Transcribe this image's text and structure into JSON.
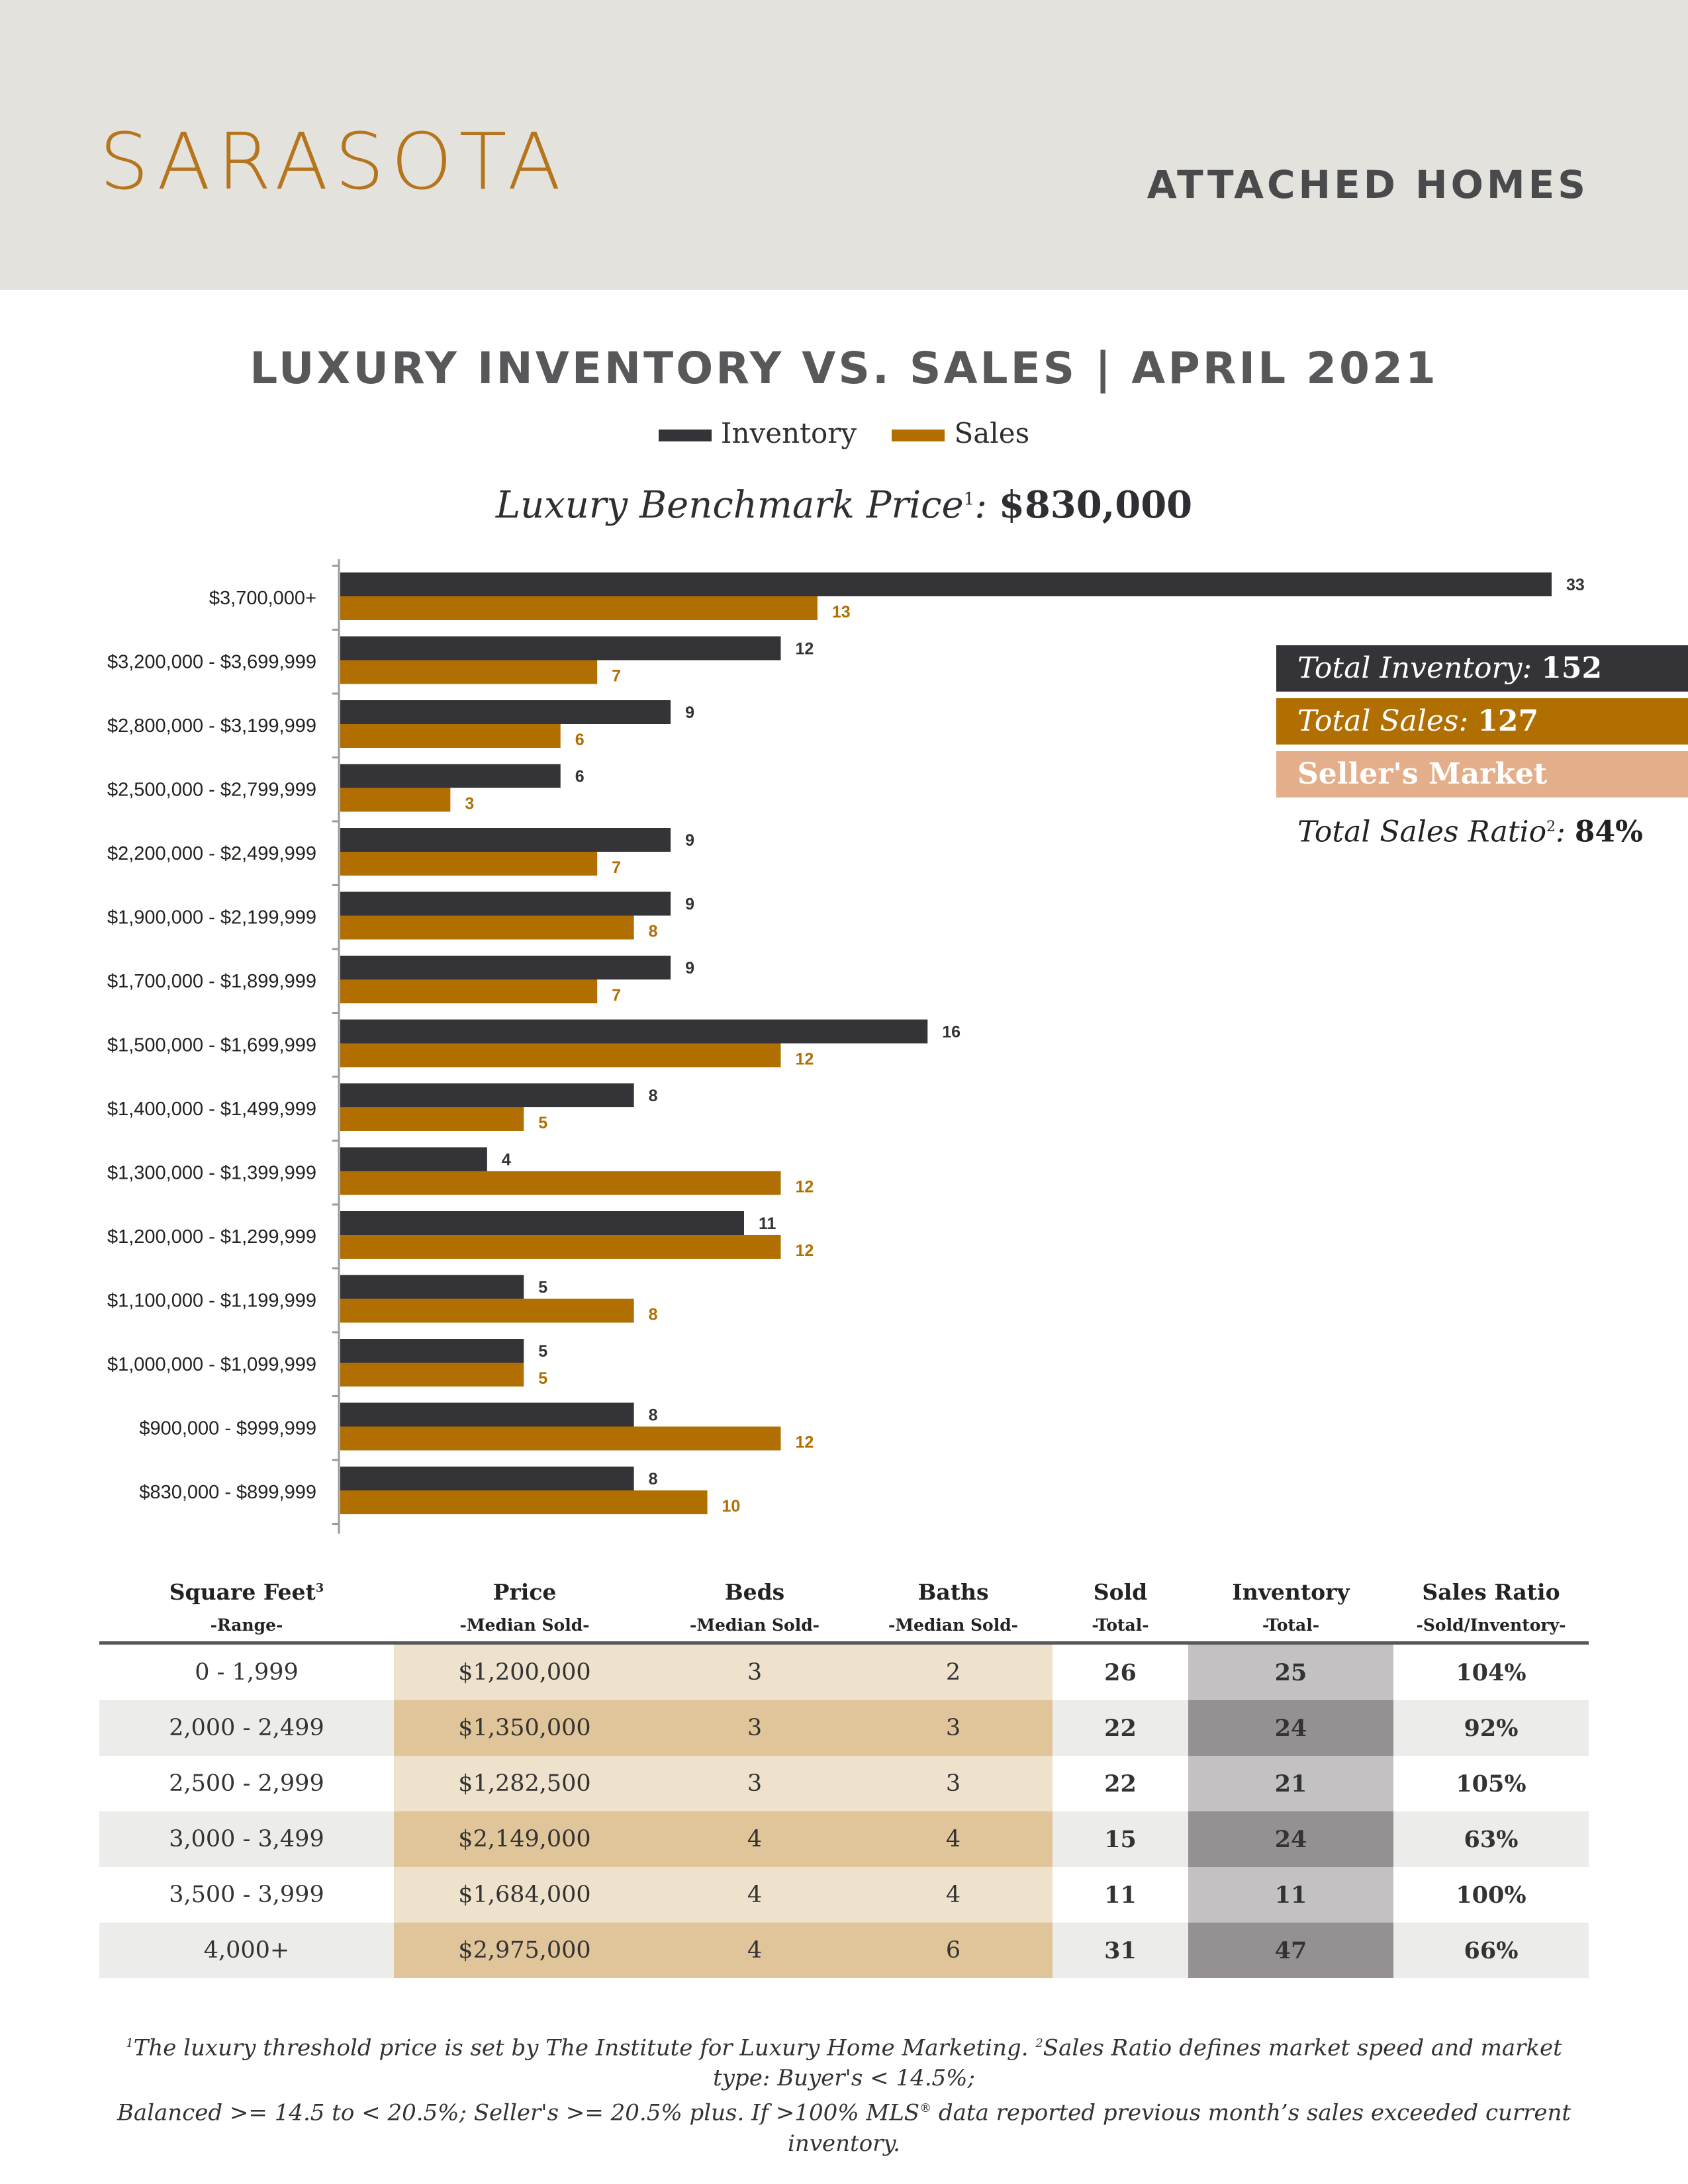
{
  "header": {
    "city": "SARASOTA",
    "segment": "ATTACHED HOMES"
  },
  "title": "LUXURY INVENTORY VS. SALES | APRIL 2021",
  "legend": {
    "inventory": "Inventory",
    "sales": "Sales"
  },
  "benchmark": {
    "label": "Luxury Benchmark Price",
    "sup": "1",
    "colon": ":",
    "value": "$830,000"
  },
  "colors": {
    "inventory": "#333338",
    "sales": "#b06f00",
    "header_bg": "#e4e2dd",
    "accent": "#b5751d",
    "market": "#e5ae8a"
  },
  "chart_data": {
    "type": "bar",
    "orientation": "horizontal",
    "categories": [
      "$3,700,000+",
      "$3,200,000 - $3,699,999",
      "$2,800,000 - $3,199,999",
      "$2,500,000 - $2,799,999",
      "$2,200,000 - $2,499,999",
      "$1,900,000 - $2,199,999",
      "$1,700,000 - $1,899,999",
      "$1,500,000 - $1,699,999",
      "$1,400,000 - $1,499,999",
      "$1,300,000 - $1,399,999",
      "$1,200,000 - $1,299,999",
      "$1,100,000 - $1,199,999",
      "$1,000,000 - $1,099,999",
      "$900,000 - $999,999",
      "$830,000 - $899,999"
    ],
    "series": [
      {
        "name": "Inventory",
        "values": [
          33,
          12,
          9,
          6,
          9,
          9,
          9,
          16,
          8,
          4,
          11,
          5,
          5,
          8,
          8
        ]
      },
      {
        "name": "Sales",
        "values": [
          13,
          7,
          6,
          3,
          7,
          8,
          7,
          12,
          5,
          12,
          12,
          8,
          5,
          12,
          10
        ]
      }
    ],
    "title": "LUXURY INVENTORY VS. SALES | APRIL 2021",
    "xlim": [
      0,
      33
    ],
    "grid": false,
    "legend": "top-center"
  },
  "summary": {
    "inventory_label": "Total Inventory:",
    "inventory_value": "152",
    "sales_label": "Total Sales:",
    "sales_value": "127",
    "market": "Seller's Market",
    "ratio_label": "Total Sales Ratio",
    "ratio_sup": "2",
    "ratio_colon": ":",
    "ratio_value": "84%"
  },
  "table": {
    "headers": [
      {
        "main": "Square Feet",
        "sup": "3",
        "sub": "-Range-"
      },
      {
        "main": "Price",
        "sup": "",
        "sub": "-Median Sold-"
      },
      {
        "main": "Beds",
        "sup": "",
        "sub": "-Median Sold-"
      },
      {
        "main": "Baths",
        "sup": "",
        "sub": "-Median Sold-"
      },
      {
        "main": "Sold",
        "sup": "",
        "sub": "-Total-"
      },
      {
        "main": "Inventory",
        "sup": "",
        "sub": "-Total-"
      },
      {
        "main": "Sales Ratio",
        "sup": "",
        "sub": "-Sold/Inventory-"
      }
    ],
    "rows": [
      [
        "0 - 1,999",
        "$1,200,000",
        "3",
        "2",
        "26",
        "25",
        "104%"
      ],
      [
        "2,000 - 2,499",
        "$1,350,000",
        "3",
        "3",
        "22",
        "24",
        "92%"
      ],
      [
        "2,500 - 2,999",
        "$1,282,500",
        "3",
        "3",
        "22",
        "21",
        "105%"
      ],
      [
        "3,000 - 3,499",
        "$2,149,000",
        "4",
        "4",
        "15",
        "24",
        "63%"
      ],
      [
        "3,500 - 3,999",
        "$1,684,000",
        "4",
        "4",
        "11",
        "11",
        "100%"
      ],
      [
        "4,000+",
        "$2,975,000",
        "4",
        "6",
        "31",
        "47",
        "66%"
      ]
    ]
  },
  "footnote": {
    "sup1": "1",
    "line1a": "The luxury threshold price is set by The Institute for Luxury Home Marketing.",
    "sup2": "2",
    "line1b": "Sales Ratio defines market speed and market type: Buyer's < 14.5%;",
    "line2": "Balanced >= 14.5 to < 20.5%; Seller's >= 20.5% plus. If >100% MLS",
    "reg": "®",
    "line2b": " data reported previous month’s sales exceeded current inventory."
  }
}
